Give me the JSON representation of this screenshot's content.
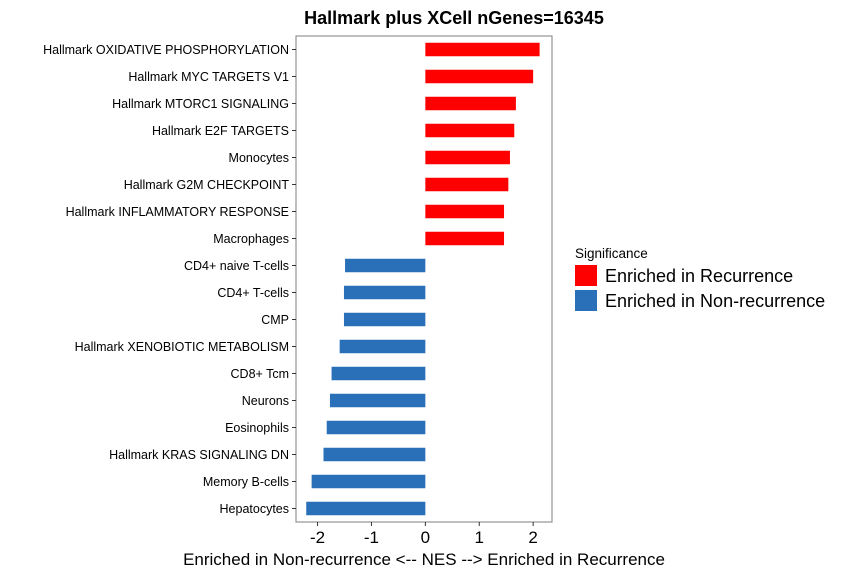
{
  "chart_data": {
    "type": "bar",
    "orientation": "horizontal",
    "title": "Hallmark plus XCell nGenes=16345",
    "xlabel": "Enriched in Non-recurrence <-- NES --> Enriched in Recurrence",
    "ylabel": "",
    "xlim": [
      -2.4,
      2.35
    ],
    "xticks": [
      -2,
      -1,
      0,
      1,
      2
    ],
    "xtick_labels": [
      "-2",
      "-1",
      "0",
      "1",
      "2"
    ],
    "grid": false,
    "legend_position": "right",
    "legend": {
      "title": "Significance",
      "entries": [
        {
          "label": "Enriched in Recurrence",
          "color": "#ff0000"
        },
        {
          "label": "Enriched in Non-recurrence",
          "color": "#2a70b8"
        }
      ]
    },
    "categories": [
      "Hallmark OXIDATIVE PHOSPHORYLATION",
      "Hallmark MYC TARGETS V1",
      "Hallmark MTORC1 SIGNALING",
      "Hallmark E2F TARGETS",
      "Monocytes",
      "Hallmark G2M CHECKPOINT",
      "Hallmark INFLAMMATORY RESPONSE",
      "Macrophages",
      "CD4+ naive T-cells",
      "CD4+ T-cells",
      "CMP",
      "Hallmark XENOBIOTIC METABOLISM",
      "CD8+ Tcm",
      "Neurons",
      "Eosinophils",
      "Hallmark KRAS SIGNALING DN",
      "Memory B-cells",
      "Hepatocytes"
    ],
    "values": [
      2.12,
      2.0,
      1.68,
      1.65,
      1.57,
      1.54,
      1.46,
      1.46,
      -1.49,
      -1.51,
      -1.51,
      -1.59,
      -1.74,
      -1.77,
      -1.83,
      -1.89,
      -2.11,
      -2.21
    ],
    "groups": [
      "Enriched in Recurrence",
      "Enriched in Recurrence",
      "Enriched in Recurrence",
      "Enriched in Recurrence",
      "Enriched in Recurrence",
      "Enriched in Recurrence",
      "Enriched in Recurrence",
      "Enriched in Recurrence",
      "Enriched in Non-recurrence",
      "Enriched in Non-recurrence",
      "Enriched in Non-recurrence",
      "Enriched in Non-recurrence",
      "Enriched in Non-recurrence",
      "Enriched in Non-recurrence",
      "Enriched in Non-recurrence",
      "Enriched in Non-recurrence",
      "Enriched in Non-recurrence",
      "Enriched in Non-recurrence"
    ]
  }
}
